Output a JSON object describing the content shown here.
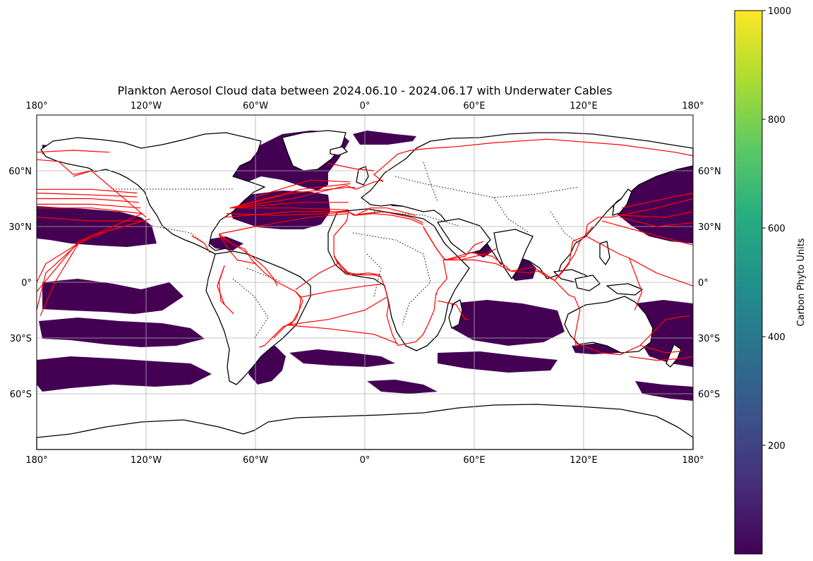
{
  "title": "Plankton Aerosol Cloud data between 2024.06.10 - 2024.06.17 with Underwater Cables",
  "map": {
    "projection": "PlateCarree",
    "extent": {
      "lon": [
        -180,
        180
      ],
      "lat": [
        -90,
        90
      ]
    },
    "lon_ticks": [
      {
        "value": -180,
        "label": "180°"
      },
      {
        "value": -120,
        "label": "120°W"
      },
      {
        "value": -60,
        "label": "60°W"
      },
      {
        "value": 0,
        "label": "0°"
      },
      {
        "value": 60,
        "label": "60°E"
      },
      {
        "value": 120,
        "label": "120°E"
      },
      {
        "value": 180,
        "label": "180°"
      }
    ],
    "lat_ticks": [
      {
        "value": 60,
        "label": "60°N"
      },
      {
        "value": 30,
        "label": "30°N"
      },
      {
        "value": 0,
        "label": "0°"
      },
      {
        "value": -30,
        "label": "30°S"
      },
      {
        "value": -60,
        "label": "60°S"
      }
    ],
    "gridlines": true,
    "coastline_color": "#000000",
    "borders_style": "dotted",
    "cable_color": "#ff0000",
    "plankton_color": "#440154"
  },
  "colorbar": {
    "label": "Carbon Phyto Units",
    "colormap": "viridis",
    "range": [
      0,
      1000
    ],
    "ticks": [
      {
        "value": 200,
        "label": "200"
      },
      {
        "value": 400,
        "label": "400"
      },
      {
        "value": 600,
        "label": "600"
      },
      {
        "value": 800,
        "label": "800"
      },
      {
        "value": 1000,
        "label": "1000"
      }
    ]
  },
  "cables": [
    [
      [
        -180,
        50
      ],
      [
        -150,
        50
      ],
      [
        -125,
        48
      ]
    ],
    [
      [
        -180,
        45
      ],
      [
        -150,
        45
      ],
      [
        -124,
        43
      ]
    ],
    [
      [
        -180,
        40
      ],
      [
        -150,
        40
      ],
      [
        -122,
        37
      ]
    ],
    [
      [
        -180,
        35
      ],
      [
        -150,
        33
      ],
      [
        -120,
        33
      ]
    ],
    [
      [
        -180,
        48
      ],
      [
        -150,
        47
      ],
      [
        -125,
        46
      ]
    ],
    [
      [
        -180,
        42
      ],
      [
        -150,
        42
      ],
      [
        -123,
        40
      ]
    ],
    [
      [
        -118,
        34
      ],
      [
        -140,
        28
      ],
      [
        -157,
        21
      ],
      [
        -175,
        5
      ],
      [
        -180,
        -15
      ]
    ],
    [
      [
        -118,
        34
      ],
      [
        -150,
        25
      ],
      [
        -157,
        21
      ]
    ],
    [
      [
        -157,
        21
      ],
      [
        -170,
        0
      ],
      [
        -178,
        -18
      ]
    ],
    [
      [
        -157,
        21
      ],
      [
        -175,
        10
      ],
      [
        -180,
        0
      ]
    ],
    [
      [
        -120,
        35
      ],
      [
        -150,
        60
      ],
      [
        -160,
        57
      ]
    ],
    [
      [
        -122,
        37
      ],
      [
        -157,
        22
      ],
      [
        -180,
        -5
      ]
    ],
    [
      [
        -74,
        40
      ],
      [
        -40,
        45
      ],
      [
        -10,
        52
      ],
      [
        -5,
        50
      ]
    ],
    [
      [
        -74,
        40
      ],
      [
        -40,
        48
      ],
      [
        -10,
        51
      ],
      [
        -5,
        51
      ]
    ],
    [
      [
        -70,
        41
      ],
      [
        -35,
        50
      ],
      [
        -8,
        53
      ]
    ],
    [
      [
        -74,
        40
      ],
      [
        -35,
        43
      ],
      [
        -9,
        43
      ]
    ],
    [
      [
        -60,
        46
      ],
      [
        -30,
        55
      ],
      [
        -8,
        54
      ]
    ],
    [
      [
        -74,
        40
      ],
      [
        -40,
        40
      ],
      [
        -9,
        39
      ]
    ],
    [
      [
        -77,
        35
      ],
      [
        -40,
        38
      ],
      [
        -9,
        38
      ]
    ],
    [
      [
        -76,
        37
      ],
      [
        -50,
        36
      ],
      [
        -20,
        37
      ],
      [
        -9,
        38
      ]
    ],
    [
      [
        -80,
        26
      ],
      [
        -60,
        30
      ],
      [
        -30,
        35
      ],
      [
        -9,
        37
      ]
    ],
    [
      [
        -80,
        26
      ],
      [
        -72,
        20
      ],
      [
        -66,
        18
      ]
    ],
    [
      [
        -80,
        26
      ],
      [
        -75,
        18
      ],
      [
        -70,
        12
      ],
      [
        -60,
        10
      ]
    ],
    [
      [
        -66,
        18
      ],
      [
        -62,
        12
      ],
      [
        -55,
        5
      ],
      [
        -48,
        0
      ],
      [
        -38,
        -5
      ],
      [
        -35,
        -8
      ]
    ],
    [
      [
        -77,
        9
      ],
      [
        -80,
        0
      ],
      [
        -79,
        -10
      ],
      [
        -77,
        -12
      ]
    ],
    [
      [
        -77,
        9
      ],
      [
        -81,
        -2
      ],
      [
        -77,
        -12
      ],
      [
        -72,
        -17
      ]
    ],
    [
      [
        -35,
        -8
      ],
      [
        -36,
        -15
      ],
      [
        -40,
        -22
      ],
      [
        -45,
        -24
      ],
      [
        -55,
        -34
      ],
      [
        -58,
        -35
      ]
    ],
    [
      [
        -38,
        -5
      ],
      [
        -34,
        -10
      ],
      [
        -38,
        -20
      ],
      [
        -44,
        -24
      ],
      [
        -50,
        -30
      ]
    ],
    [
      [
        -38,
        -4
      ],
      [
        -25,
        5
      ],
      [
        -15,
        10
      ],
      [
        -17,
        15
      ]
    ],
    [
      [
        -35,
        -8
      ],
      [
        -20,
        -5
      ],
      [
        0,
        -2
      ],
      [
        9,
        -1
      ]
    ],
    [
      [
        -43,
        -23
      ],
      [
        -20,
        -25
      ],
      [
        5,
        -28
      ],
      [
        18,
        -33
      ]
    ],
    [
      [
        -43,
        -23
      ],
      [
        -20,
        -20
      ],
      [
        0,
        -15
      ],
      [
        12,
        -8
      ]
    ],
    [
      [
        -17,
        15
      ],
      [
        -17,
        25
      ],
      [
        -10,
        33
      ],
      [
        -9,
        38
      ]
    ],
    [
      [
        -17,
        14
      ],
      [
        -10,
        5
      ],
      [
        0,
        4
      ],
      [
        5,
        4
      ],
      [
        9,
        3
      ]
    ],
    [
      [
        -16,
        12
      ],
      [
        -8,
        4
      ],
      [
        2,
        5
      ],
      [
        8,
        4
      ],
      [
        10,
        0
      ],
      [
        12,
        -6
      ],
      [
        13,
        -12
      ],
      [
        12,
        -18
      ],
      [
        15,
        -28
      ],
      [
        18,
        -34
      ]
    ],
    [
      [
        -17,
        14
      ],
      [
        -12,
        6
      ],
      [
        -4,
        4
      ],
      [
        4,
        4
      ]
    ],
    [
      [
        -9,
        38
      ],
      [
        -6,
        36
      ],
      [
        0,
        37
      ],
      [
        10,
        38
      ],
      [
        15,
        37
      ],
      [
        25,
        35
      ],
      [
        32,
        32
      ]
    ],
    [
      [
        -9,
        38
      ],
      [
        -5,
        36
      ],
      [
        3,
        40
      ],
      [
        12,
        40
      ],
      [
        20,
        38
      ],
      [
        28,
        36
      ]
    ],
    [
      [
        -5,
        36
      ],
      [
        5,
        37
      ],
      [
        15,
        36
      ],
      [
        25,
        34
      ],
      [
        32,
        31
      ]
    ],
    [
      [
        32,
        30
      ],
      [
        33,
        28
      ],
      [
        38,
        20
      ],
      [
        43,
        13
      ],
      [
        45,
        12
      ],
      [
        55,
        14
      ],
      [
        60,
        20
      ],
      [
        65,
        22
      ]
    ],
    [
      [
        32,
        30
      ],
      [
        35,
        25
      ],
      [
        40,
        17
      ],
      [
        44,
        12
      ],
      [
        52,
        12
      ],
      [
        65,
        15
      ],
      [
        72,
        18
      ]
    ],
    [
      [
        43,
        12
      ],
      [
        60,
        12
      ],
      [
        72,
        10
      ],
      [
        80,
        6
      ]
    ],
    [
      [
        44,
        12
      ],
      [
        58,
        16
      ],
      [
        70,
        14
      ],
      [
        78,
        8
      ],
      [
        80,
        6
      ]
    ],
    [
      [
        80,
        6
      ],
      [
        90,
        5
      ],
      [
        95,
        6
      ],
      [
        100,
        3
      ],
      [
        104,
        1
      ]
    ],
    [
      [
        80,
        6
      ],
      [
        92,
        8
      ],
      [
        98,
        5
      ],
      [
        104,
        1
      ]
    ],
    [
      [
        104,
        1
      ],
      [
        108,
        5
      ],
      [
        112,
        10
      ],
      [
        114,
        22
      ],
      [
        121,
        25
      ],
      [
        122,
        31
      ]
    ],
    [
      [
        104,
        1
      ],
      [
        110,
        8
      ],
      [
        115,
        15
      ],
      [
        118,
        22
      ],
      [
        125,
        30
      ]
    ],
    [
      [
        122,
        31
      ],
      [
        128,
        35
      ],
      [
        135,
        35
      ],
      [
        140,
        36
      ]
    ],
    [
      [
        104,
        1
      ],
      [
        112,
        -7
      ],
      [
        115,
        -8
      ],
      [
        118,
        -15
      ],
      [
        115,
        -30
      ],
      [
        116,
        -35
      ]
    ],
    [
      [
        116,
        -33
      ],
      [
        130,
        -38
      ],
      [
        140,
        -39
      ],
      [
        151,
        -34
      ]
    ],
    [
      [
        151,
        -34
      ],
      [
        165,
        -38
      ],
      [
        174,
        -37
      ]
    ],
    [
      [
        151,
        -34
      ],
      [
        160,
        -25
      ],
      [
        165,
        -20
      ],
      [
        178,
        -18
      ]
    ],
    [
      [
        140,
        36
      ],
      [
        160,
        40
      ],
      [
        180,
        45
      ]
    ],
    [
      [
        140,
        36
      ],
      [
        165,
        35
      ],
      [
        180,
        38
      ]
    ],
    [
      [
        140,
        35
      ],
      [
        160,
        30
      ],
      [
        180,
        32
      ]
    ],
    [
      [
        141,
        40
      ],
      [
        160,
        44
      ],
      [
        180,
        48
      ]
    ],
    [
      [
        130,
        33
      ],
      [
        160,
        25
      ],
      [
        180,
        20
      ]
    ],
    [
      [
        121,
        25
      ],
      [
        140,
        15
      ],
      [
        145,
        13
      ],
      [
        160,
        5
      ],
      [
        180,
        -2
      ]
    ],
    [
      [
        145,
        13
      ],
      [
        150,
        0
      ],
      [
        152,
        -5
      ],
      [
        148,
        -15
      ]
    ],
    [
      [
        145,
        -40
      ],
      [
        160,
        -42
      ],
      [
        174,
        -41
      ],
      [
        180,
        -40
      ]
    ],
    [
      [
        39,
        -6
      ],
      [
        38,
        -15
      ],
      [
        35,
        -22
      ],
      [
        32,
        -28
      ],
      [
        28,
        -32
      ],
      [
        18,
        -34
      ]
    ],
    [
      [
        43,
        12
      ],
      [
        45,
        2
      ],
      [
        40,
        -4
      ],
      [
        39,
        -7
      ]
    ],
    [
      [
        40,
        -10
      ],
      [
        50,
        -12
      ],
      [
        55,
        -20
      ],
      [
        57,
        -20
      ]
    ],
    [
      [
        5,
        60
      ],
      [
        -5,
        61
      ],
      [
        -20,
        64
      ]
    ],
    [
      [
        10,
        54
      ],
      [
        5,
        58
      ],
      [
        10,
        62
      ],
      [
        18,
        69
      ],
      [
        25,
        71
      ]
    ],
    [
      [
        10,
        55
      ],
      [
        5,
        54
      ],
      [
        0,
        52
      ],
      [
        -5,
        50
      ]
    ],
    [
      [
        25,
        71
      ],
      [
        35,
        72
      ],
      [
        50,
        73
      ],
      [
        70,
        75
      ],
      [
        100,
        77
      ],
      [
        140,
        74
      ],
      [
        170,
        70
      ],
      [
        180,
        68
      ]
    ],
    [
      [
        -180,
        66
      ],
      [
        -168,
        65
      ],
      [
        -160,
        58
      ],
      [
        -150,
        60
      ]
    ],
    [
      [
        -180,
        70
      ],
      [
        -160,
        71
      ],
      [
        -140,
        70
      ]
    ],
    [
      [
        -95,
        25
      ],
      [
        -88,
        21
      ],
      [
        -85,
        16
      ]
    ],
    [
      [
        -80,
        25
      ],
      [
        -75,
        22
      ],
      [
        -68,
        18
      ],
      [
        -62,
        14
      ],
      [
        -55,
        8
      ],
      [
        -50,
        2
      ],
      [
        -48,
        -2
      ]
    ]
  ]
}
